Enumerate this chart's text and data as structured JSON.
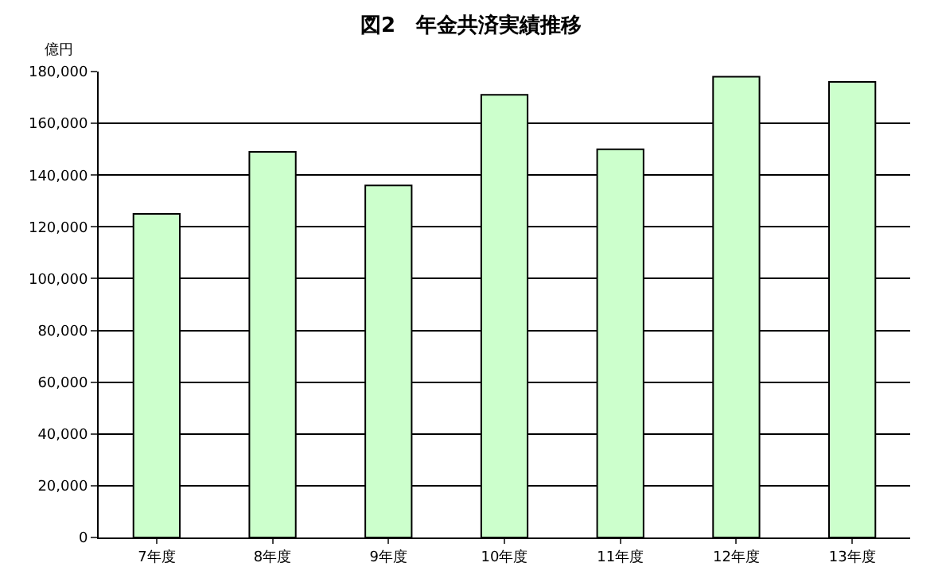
{
  "chart_data": {
    "type": "bar",
    "title": "図2　年金共済実績推移",
    "ylabel": "億円",
    "categories": [
      "7年度",
      "8年度",
      "9年度",
      "10年度",
      "11年度",
      "12年度",
      "13年度"
    ],
    "values": [
      125000,
      149000,
      136000,
      171000,
      150000,
      178000,
      176000
    ],
    "color": "#ccffcc",
    "ylim": [
      0,
      180000
    ],
    "yticks": [
      0,
      {
        "value": 20000,
        "label": "20,000"
      },
      {
        "value": 40000,
        "label": "40,000"
      },
      {
        "value": 60000,
        "label": "60,000"
      },
      {
        "value": 80000,
        "label": "80,000"
      },
      {
        "value": 100000,
        "label": "100,000"
      },
      {
        "value": 120000,
        "label": "120,000"
      },
      {
        "value": 140000,
        "label": "140,000"
      },
      {
        "value": 160000,
        "label": "160,000"
      },
      {
        "value": 180000,
        "label": "180,000"
      }
    ],
    "grid": "y"
  }
}
